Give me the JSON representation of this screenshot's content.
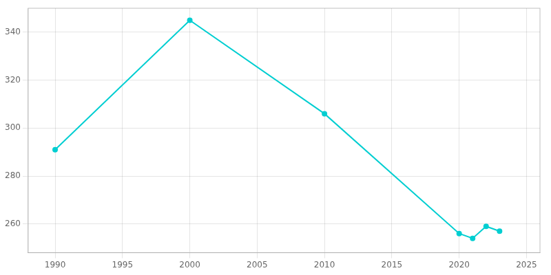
{
  "chart_data": {
    "type": "line",
    "x": [
      1990,
      2000,
      2010,
      2020,
      2021,
      2022,
      2023
    ],
    "values": [
      291,
      345,
      306,
      256,
      254,
      259,
      257
    ],
    "color": "#00CED1",
    "marker": "circle",
    "xlim": [
      1988,
      2026
    ],
    "xticks": [
      1990,
      1995,
      2000,
      2005,
      2010,
      2015,
      2020,
      2025
    ],
    "ylim": [
      248,
      350
    ],
    "yticks": [
      260,
      280,
      300,
      320,
      340
    ],
    "grid": true
  }
}
